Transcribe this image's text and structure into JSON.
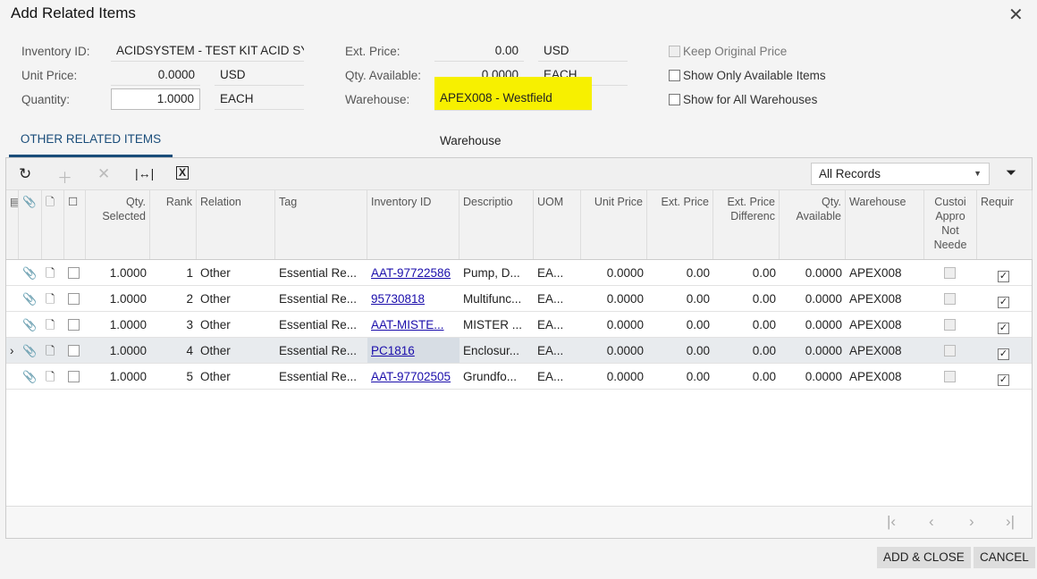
{
  "title": "Add Related Items",
  "form": {
    "inventory_id_label": "Inventory ID:",
    "inventory_id": "ACIDSYSTEM - TEST KIT ACID SY",
    "unit_price_label": "Unit Price:",
    "unit_price": "0.0000",
    "unit_price_cur": "USD",
    "quantity_label": "Quantity:",
    "quantity": "1.0000",
    "quantity_uom": "EACH",
    "ext_price_label": "Ext. Price:",
    "ext_price": "0.00",
    "ext_price_cur": "USD",
    "qty_avail_label": "Qty. Available:",
    "qty_avail": "0.0000",
    "qty_avail_uom": "EACH",
    "warehouse_label": "Warehouse:",
    "warehouse": "APEX008 - Westfield Warehouse",
    "keep_price": "Keep Original Price",
    "show_available": "Show Only Available Items",
    "show_all_wh": "Show for All Warehouses"
  },
  "tab": "OTHER RELATED ITEMS",
  "filter": "All Records",
  "columns": [
    "Qty. Selected",
    "Rank",
    "Relation",
    "Tag",
    "Inventory ID",
    "Descriptio",
    "UOM",
    "Unit Price",
    "Ext. Price",
    "Ext. Price Differenc",
    "Qty. Available",
    "Warehouse",
    "Custoi Appro Not Neede",
    "Requir"
  ],
  "rows": [
    [
      "1.0000",
      "1",
      "Other",
      "Essential Re...",
      "AAT-97722586",
      "Pump, D...",
      "EA...",
      "0.0000",
      "0.00",
      "0.00",
      "0.0000",
      "APEX008"
    ],
    [
      "1.0000",
      "2",
      "Other",
      "Essential Re...",
      "95730818",
      "Multifunc...",
      "EA...",
      "0.0000",
      "0.00",
      "0.00",
      "0.0000",
      "APEX008"
    ],
    [
      "1.0000",
      "3",
      "Other",
      "Essential Re...",
      "AAT-MISTE...",
      "MISTER ...",
      "EA...",
      "0.0000",
      "0.00",
      "0.00",
      "0.0000",
      "APEX008"
    ],
    [
      "1.0000",
      "4",
      "Other",
      "Essential Re...",
      "PC1816",
      "Enclosur...",
      "EA...",
      "0.0000",
      "0.00",
      "0.00",
      "0.0000",
      "APEX008"
    ],
    [
      "1.0000",
      "5",
      "Other",
      "Essential Re...",
      "AAT-97702505",
      "Grundfo...",
      "EA...",
      "0.0000",
      "0.00",
      "0.00",
      "0.0000",
      "APEX008"
    ]
  ],
  "active_row": 3,
  "buttons": {
    "add_close": "ADD & CLOSE",
    "cancel": "CANCEL"
  }
}
